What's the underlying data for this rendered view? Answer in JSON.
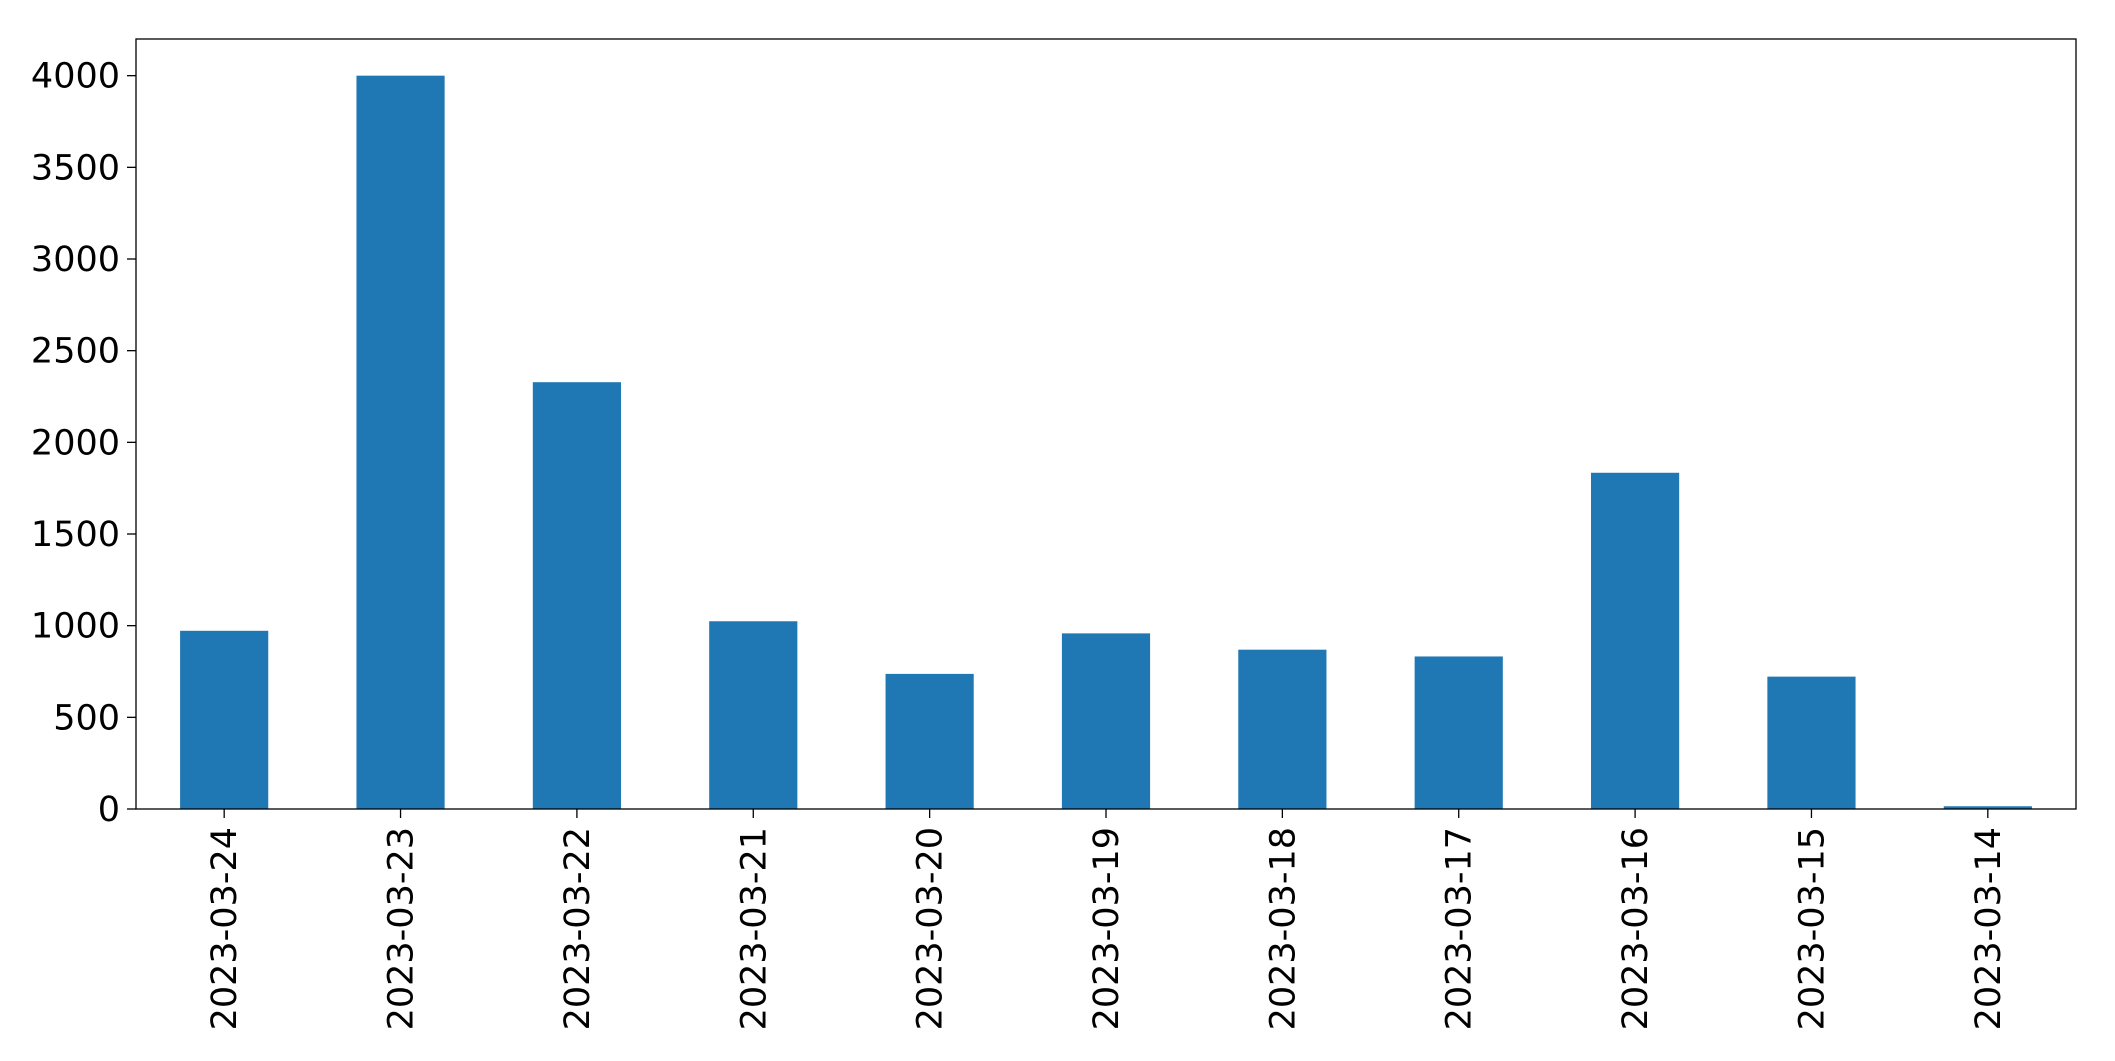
{
  "chart_data": {
    "type": "bar",
    "categories": [
      "2023-03-24",
      "2023-03-23",
      "2023-03-22",
      "2023-03-21",
      "2023-03-20",
      "2023-03-19",
      "2023-03-18",
      "2023-03-17",
      "2023-03-16",
      "2023-03-15",
      "2023-03-14"
    ],
    "values": [
      972,
      4000,
      2328,
      1024,
      737,
      958,
      869,
      832,
      1834,
      722,
      15
    ],
    "color": "#1f77b4",
    "ylim": [
      0,
      4200
    ],
    "yticks": [
      0,
      500,
      1000,
      1500,
      2000,
      2500,
      3000,
      3500,
      4000
    ],
    "grid": false
  }
}
